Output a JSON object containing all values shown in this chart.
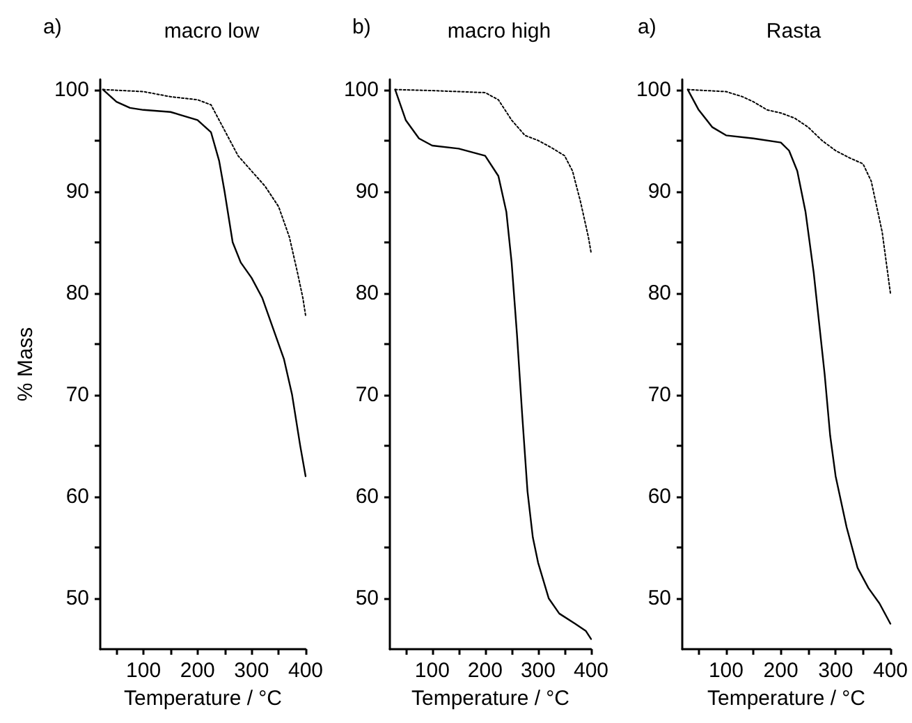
{
  "chart_data": [
    {
      "type": "line",
      "title": "macro low",
      "annotations": [
        "a)"
      ],
      "xlabel": "Temperature / °C",
      "ylabel": "% Mass",
      "xlim": [
        20,
        400
      ],
      "ylim": [
        45,
        101
      ],
      "xticks": [
        {
          "value": 50,
          "label": null
        },
        100,
        {
          "value": 150,
          "label": null
        },
        200,
        {
          "value": 250,
          "label": null
        },
        300,
        {
          "value": 350,
          "label": null
        },
        400
      ],
      "yticks": [
        50,
        {
          "value": 55,
          "label": null
        },
        60,
        {
          "value": 65,
          "label": null
        },
        70,
        {
          "value": 75,
          "label": null
        },
        80,
        {
          "value": 85,
          "label": null
        },
        90,
        {
          "value": 95,
          "label": null
        },
        100
      ],
      "grid": false,
      "series": [
        {
          "color": "#000000",
          "line_style": "solid",
          "x": [
            25,
            50,
            75,
            100,
            150,
            200,
            225,
            240,
            250,
            265,
            280,
            300,
            320,
            340,
            360,
            375,
            390,
            400
          ],
          "values": [
            100,
            98.8,
            98.2,
            98.0,
            97.8,
            97.0,
            95.8,
            93,
            90,
            85,
            83,
            81.5,
            79.5,
            76.5,
            73.5,
            70,
            65,
            62
          ]
        },
        {
          "color": "#000000",
          "line_style": "dotted",
          "x": [
            25,
            100,
            150,
            200,
            225,
            250,
            275,
            300,
            325,
            350,
            370,
            385,
            395,
            400
          ],
          "values": [
            100,
            99.8,
            99.3,
            99,
            98.5,
            96,
            93.5,
            92,
            90.5,
            88.5,
            85.5,
            82,
            79.5,
            77.8
          ]
        }
      ]
    },
    {
      "type": "line",
      "title": "macro high",
      "annotations": [
        "b)"
      ],
      "xlabel": "Temperature / °C",
      "xlim": [
        20,
        400
      ],
      "ylim": [
        45,
        101
      ],
      "xticks": [
        {
          "value": 50,
          "label": null
        },
        100,
        {
          "value": 150,
          "label": null
        },
        200,
        {
          "value": 250,
          "label": null
        },
        300,
        {
          "value": 350,
          "label": null
        },
        400
      ],
      "yticks": [
        50,
        {
          "value": 55,
          "label": null
        },
        60,
        {
          "value": 65,
          "label": null
        },
        70,
        {
          "value": 75,
          "label": null
        },
        80,
        {
          "value": 85,
          "label": null
        },
        90,
        {
          "value": 95,
          "label": null
        },
        100
      ],
      "grid": false,
      "series": [
        {
          "color": "#000000",
          "line_style": "solid",
          "x": [
            30,
            50,
            75,
            100,
            150,
            200,
            225,
            240,
            250,
            260,
            270,
            280,
            290,
            300,
            320,
            340,
            370,
            390,
            400
          ],
          "values": [
            100,
            97,
            95.2,
            94.5,
            94.2,
            93.5,
            91.5,
            88,
            83,
            76,
            68,
            60.5,
            56,
            53.5,
            50,
            48.5,
            47.5,
            46.8,
            46
          ]
        },
        {
          "color": "#000000",
          "line_style": "dotted",
          "x": [
            30,
            100,
            150,
            200,
            225,
            250,
            275,
            300,
            325,
            350,
            365,
            380,
            395,
            400
          ],
          "values": [
            100,
            99.9,
            99.8,
            99.7,
            99,
            97,
            95.5,
            95,
            94.3,
            93.5,
            92,
            89,
            85.5,
            84
          ]
        }
      ]
    },
    {
      "type": "line",
      "title": "Rasta",
      "annotations": [
        "a)"
      ],
      "xlabel": "Temperature / °C",
      "xlim": [
        20,
        400
      ],
      "ylim": [
        45,
        101
      ],
      "xticks": [
        {
          "value": 50,
          "label": null
        },
        100,
        {
          "value": 150,
          "label": null
        },
        200,
        {
          "value": 250,
          "label": null
        },
        300,
        {
          "value": 350,
          "label": null
        },
        400
      ],
      "yticks": [
        50,
        {
          "value": 55,
          "label": null
        },
        60,
        {
          "value": 65,
          "label": null
        },
        70,
        {
          "value": 75,
          "label": null
        },
        80,
        {
          "value": 85,
          "label": null
        },
        90,
        {
          "value": 95,
          "label": null
        },
        100
      ],
      "grid": false,
      "series": [
        {
          "color": "#000000",
          "line_style": "solid",
          "x": [
            30,
            50,
            75,
            100,
            150,
            200,
            215,
            230,
            245,
            260,
            270,
            280,
            290,
            300,
            320,
            340,
            360,
            380,
            400
          ],
          "values": [
            100,
            98,
            96.3,
            95.5,
            95.2,
            94.8,
            94,
            92,
            88,
            82,
            77,
            72,
            66,
            62,
            57,
            53,
            51,
            49.5,
            47.5
          ]
        },
        {
          "color": "#000000",
          "line_style": "dotted",
          "x": [
            30,
            100,
            130,
            150,
            175,
            200,
            225,
            250,
            275,
            300,
            325,
            350,
            365,
            375,
            385,
            395,
            400
          ],
          "values": [
            100,
            99.8,
            99.3,
            98.8,
            98,
            97.7,
            97.2,
            96.3,
            95,
            94,
            93.3,
            92.7,
            91,
            88.5,
            86,
            82,
            80
          ]
        }
      ]
    }
  ]
}
